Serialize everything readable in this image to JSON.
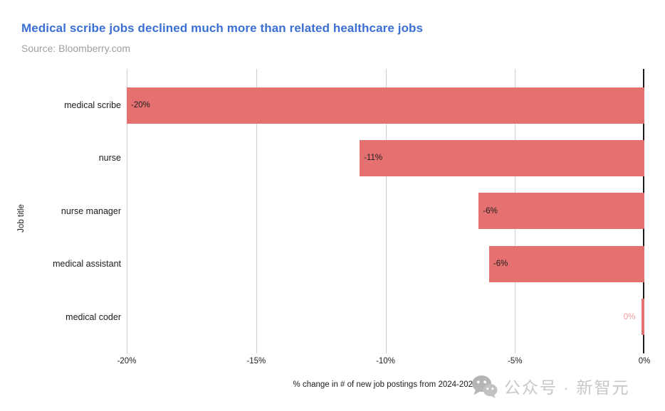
{
  "header": {
    "title": "Medical scribe jobs declined much more than related healthcare jobs",
    "source": "Source: Bloomberry.com"
  },
  "colors": {
    "title": "#3b6fd3",
    "source_text": "#9e9e9e",
    "bar": "#e57070",
    "bar_value_outside": "#ef9a9a",
    "gridline": "#cfcfcf",
    "zero_line": "#1a1a1a",
    "watermark": "#c8c8c8"
  },
  "chart_data": {
    "type": "bar",
    "orientation": "horizontal",
    "title": "Medical scribe jobs declined much more than related healthcare jobs",
    "source": "Source: Bloomberry.com",
    "categories": [
      "medical scribe",
      "nurse",
      "nurse manager",
      "medical assistant",
      "medical coder"
    ],
    "values": [
      -20,
      -11,
      -6.4,
      -6,
      -0.1
    ],
    "bar_labels": [
      "-20%",
      "-11%",
      "-6%",
      "-6%",
      "0%"
    ],
    "xlabel": "% change in # of new job postings from 2024-2025",
    "ylabel": "Job title",
    "xlim": [
      -20,
      0
    ],
    "xticks": [
      {
        "value": -20,
        "label": "-20%"
      },
      {
        "value": -15,
        "label": "-15%"
      },
      {
        "value": -10,
        "label": "-10%"
      },
      {
        "value": -5,
        "label": "-5%"
      },
      {
        "value": 0,
        "label": "0%"
      }
    ],
    "grid": true,
    "legend": false
  },
  "watermark": {
    "icon": "wechat-icon",
    "text": "公众号 · 新智元"
  }
}
